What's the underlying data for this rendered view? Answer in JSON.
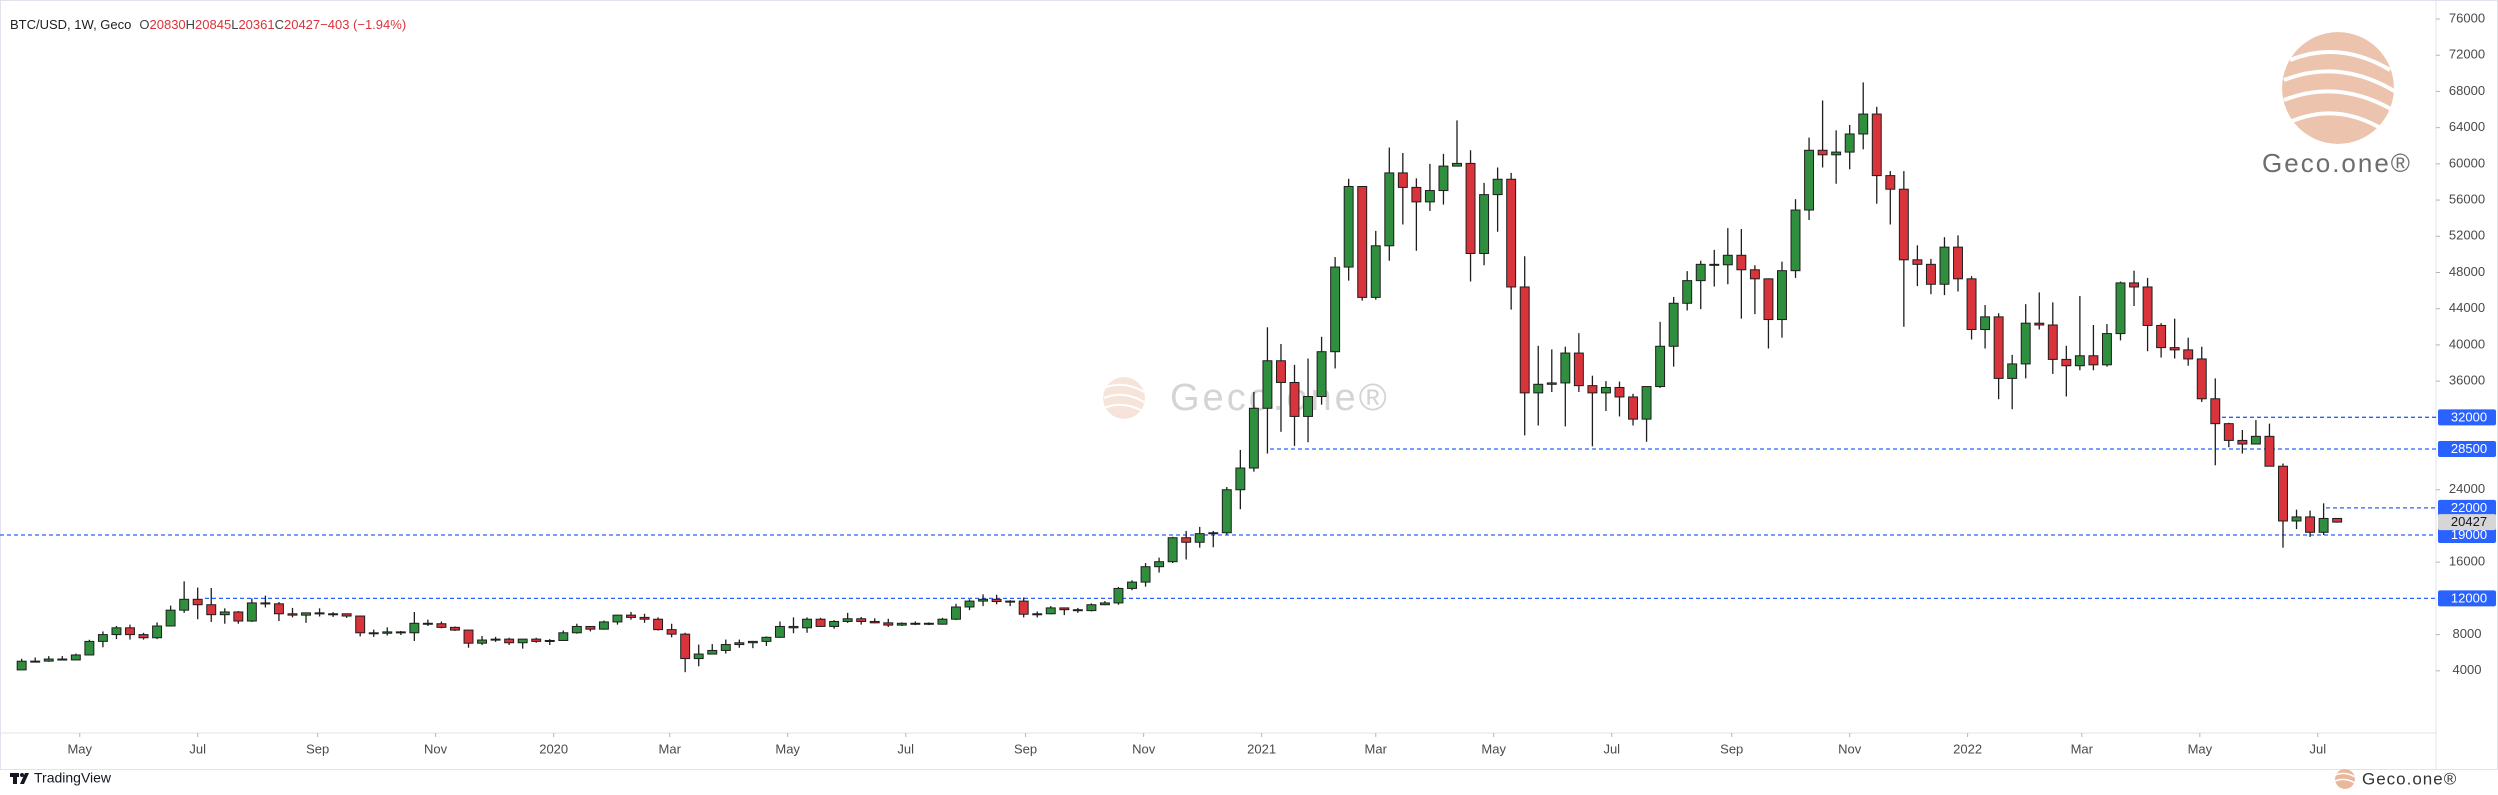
{
  "header": {
    "symbol": "BTC/USD, 1W, Geco",
    "ohlc_labels": [
      "O",
      "H",
      "L",
      "C"
    ],
    "change": "−403 (−1.94%)"
  },
  "watermark": "Geco.one®",
  "footer": {
    "platform": "TradingView"
  },
  "chart_data": {
    "type": "candlestick",
    "up_color": "#2f8f3e",
    "down_color": "#d9343b",
    "wick_color": "#1e1e1e",
    "open": [
      4100,
      5060,
      5070,
      5300,
      5200,
      5750,
      7250,
      8000,
      8750,
      8000,
      7650,
      8950,
      10700,
      11900,
      11300,
      10200,
      10500,
      9500,
      11500,
      11400,
      10300,
      10150,
      10400,
      10300,
      10300,
      10050,
      8200,
      8150,
      8300,
      8200,
      9250,
      9200,
      8800,
      8500,
      7050,
      7400,
      7500,
      7100,
      7500,
      7250,
      7350,
      8200,
      8900,
      8600,
      9400,
      10150,
      9900,
      9700,
      8550,
      8050,
      5350,
      5850,
      6250,
      6900,
      7100,
      7250,
      7700,
      8900,
      8750,
      9700,
      8900,
      9450,
      9750,
      9450,
      9300,
      9050,
      9250,
      9250,
      9150,
      9700,
      11050,
      11700,
      11900,
      11650,
      11700,
      10250,
      10300,
      10950,
      10750,
      10650,
      11300,
      11500,
      13100,
      13800,
      15500,
      16050,
      18700,
      18200,
      19150,
      19250,
      24000,
      26400,
      33000,
      38250,
      35850,
      32100,
      34300,
      39250,
      48600,
      57500,
      45250,
      50950,
      59000,
      57400,
      55800,
      57050,
      59750,
      60050,
      50100,
      56600,
      58300,
      46400,
      34700,
      35650,
      35800,
      39100,
      35500,
      34700,
      35300,
      34250,
      31800,
      35400,
      39850,
      44600,
      47100,
      48900,
      48850,
      49900,
      48300,
      47300,
      42800,
      48200,
      54900,
      61500,
      61000,
      61300,
      63300,
      65500,
      58700,
      57200,
      49400,
      48900,
      46700,
      50800,
      47300,
      41700,
      43100,
      36300,
      37900,
      42400,
      42200,
      38400,
      37700,
      38800,
      37800,
      41250,
      46850,
      46400,
      42150,
      39700,
      39450,
      38450,
      34050,
      31300,
      29450,
      29050,
      29900,
      26600,
      20550,
      21000,
      19300,
      20830
    ],
    "high": [
      5330,
      5470,
      5620,
      5630,
      5900,
      7430,
      8350,
      8950,
      9100,
      8200,
      9350,
      11200,
      13880,
      13200,
      13150,
      10900,
      10600,
      12000,
      12300,
      11600,
      10950,
      10450,
      10900,
      10480,
      10330,
      10100,
      8550,
      8800,
      8400,
      10500,
      9650,
      9450,
      8900,
      8500,
      7850,
      7750,
      7650,
      7500,
      7650,
      7500,
      8450,
      9200,
      8950,
      9550,
      10200,
      10500,
      10300,
      9900,
      9200,
      8200,
      6900,
      6950,
      7450,
      7450,
      7300,
      7800,
      9450,
      9900,
      9900,
      9850,
      9600,
      10400,
      9950,
      9800,
      9750,
      9350,
      9450,
      9350,
      9850,
      11400,
      11900,
      12450,
      12400,
      11800,
      12100,
      10550,
      11150,
      10950,
      10950,
      11450,
      11700,
      13250,
      14000,
      15900,
      16500,
      18800,
      19450,
      19900,
      19450,
      24300,
      28400,
      34800,
      41950,
      40100,
      37800,
      38500,
      40900,
      49700,
      58350,
      57500,
      52600,
      61800,
      61200,
      58400,
      60000,
      61100,
      64800,
      61500,
      57900,
      59600,
      59000,
      49800,
      39900,
      39500,
      39800,
      41300,
      36600,
      36000,
      35950,
      34600,
      35450,
      42550,
      45300,
      48150,
      49300,
      50500,
      52900,
      52800,
      48800,
      47350,
      49200,
      56100,
      62900,
      67000,
      63700,
      64300,
      69000,
      66300,
      59200,
      59200,
      51000,
      49500,
      51900,
      52100,
      47600,
      44400,
      43500,
      38900,
      44500,
      45800,
      44700,
      39900,
      45400,
      42200,
      42300,
      47000,
      48200,
      47400,
      42400,
      42900,
      40800,
      39800,
      36300,
      31400,
      30600,
      31700,
      31300,
      26900,
      21800,
      21700,
      22500,
      20845
    ],
    "low": [
      4090,
      4920,
      5000,
      5150,
      5180,
      5700,
      6600,
      7500,
      7450,
      7450,
      7500,
      8950,
      10400,
      9700,
      9400,
      9200,
      9200,
      9400,
      11000,
      9500,
      9900,
      9300,
      10000,
      9950,
      9850,
      7800,
      7750,
      7900,
      7950,
      7300,
      8950,
      8700,
      8400,
      6550,
      6850,
      7200,
      6850,
      6450,
      7100,
      6850,
      7300,
      8100,
      8350,
      8550,
      9100,
      9650,
      9300,
      8450,
      7700,
      3850,
      4500,
      5850,
      5900,
      6550,
      6500,
      6750,
      7650,
      8150,
      8200,
      8850,
      8650,
      9300,
      9100,
      9250,
      8850,
      8950,
      9050,
      9050,
      9100,
      9600,
      10700,
      11150,
      11350,
      11150,
      9900,
      9900,
      10250,
      10150,
      10400,
      10550,
      11250,
      11300,
      12900,
      13300,
      14850,
      15900,
      16300,
      17600,
      17650,
      19050,
      21850,
      26000,
      28000,
      30400,
      28850,
      29250,
      33400,
      37400,
      47100,
      44900,
      45000,
      49300,
      53300,
      50400,
      54800,
      55500,
      59750,
      47000,
      48800,
      52500,
      43900,
      30000,
      31100,
      34800,
      31000,
      34800,
      28800,
      32700,
      32100,
      31100,
      29300,
      35250,
      37600,
      43800,
      43950,
      46450,
      46700,
      42900,
      43400,
      39600,
      40800,
      47400,
      53800,
      59600,
      57800,
      59400,
      61600,
      55600,
      53300,
      42000,
      46500,
      45600,
      45500,
      45900,
      40600,
      39600,
      34000,
      32900,
      36300,
      41700,
      36800,
      34300,
      37200,
      37200,
      37600,
      40500,
      44300,
      39300,
      38600,
      38500,
      37700,
      33700,
      26700,
      28700,
      28000,
      29200,
      26600,
      17600,
      19650,
      18780,
      19000,
      20361
    ],
    "close": [
      5060,
      5070,
      5300,
      5200,
      5750,
      7250,
      8000,
      8750,
      8000,
      7650,
      8950,
      10700,
      11900,
      11300,
      10200,
      10500,
      9500,
      11500,
      11400,
      10300,
      10150,
      10400,
      10300,
      10300,
      10050,
      8200,
      8150,
      8300,
      8200,
      9250,
      9200,
      8800,
      8500,
      7050,
      7400,
      7500,
      7100,
      7500,
      7250,
      7350,
      8200,
      8900,
      8600,
      9400,
      10150,
      9900,
      9700,
      8550,
      8050,
      5350,
      5850,
      6250,
      6900,
      7100,
      7250,
      7700,
      8900,
      8750,
      9700,
      8900,
      9450,
      9750,
      9450,
      9300,
      9050,
      9250,
      9250,
      9150,
      9700,
      11050,
      11700,
      11900,
      11650,
      11700,
      10250,
      10300,
      10950,
      10750,
      10650,
      11300,
      11500,
      13100,
      13800,
      15500,
      16050,
      18700,
      18200,
      19150,
      19250,
      24000,
      26400,
      33000,
      38250,
      35850,
      32100,
      34300,
      39250,
      48600,
      57500,
      45250,
      50950,
      59000,
      57400,
      55800,
      57050,
      59750,
      60050,
      50100,
      56600,
      58300,
      46400,
      34700,
      35650,
      35800,
      39100,
      35500,
      34700,
      35300,
      34250,
      31800,
      35400,
      39850,
      44600,
      47100,
      48900,
      48850,
      49900,
      48300,
      47300,
      42800,
      48200,
      54900,
      61500,
      61000,
      61300,
      63300,
      65500,
      58700,
      57200,
      49400,
      48900,
      46700,
      50800,
      47300,
      41700,
      43100,
      36300,
      37900,
      42400,
      42200,
      38400,
      37700,
      38800,
      37800,
      41250,
      46850,
      46400,
      42150,
      39700,
      39450,
      38450,
      34050,
      31300,
      29450,
      29050,
      29900,
      26600,
      20550,
      21000,
      19300,
      20830,
      20427
    ],
    "xlim": [
      -1.6,
      178.3
    ],
    "xticks": [
      {
        "value": 4.29,
        "label": "May"
      },
      {
        "value": 13,
        "label": "Jul"
      },
      {
        "value": 21.86,
        "label": "Sep"
      },
      {
        "value": 30.57,
        "label": "Nov"
      },
      {
        "value": 39.29,
        "label": "2020"
      },
      {
        "value": 47.86,
        "label": "Mar"
      },
      {
        "value": 56.57,
        "label": "May"
      },
      {
        "value": 65.29,
        "label": "Jul"
      },
      {
        "value": 74.14,
        "label": "Sep"
      },
      {
        "value": 82.86,
        "label": "Nov"
      },
      {
        "value": 91.57,
        "label": "2021"
      },
      {
        "value": 100,
        "label": "Mar"
      },
      {
        "value": 108.71,
        "label": "May"
      },
      {
        "value": 117.43,
        "label": "Jul"
      },
      {
        "value": 126.29,
        "label": "Sep"
      },
      {
        "value": 135,
        "label": "Nov"
      },
      {
        "value": 143.71,
        "label": "2022"
      },
      {
        "value": 152.14,
        "label": "Mar"
      },
      {
        "value": 160.86,
        "label": "May"
      },
      {
        "value": 169.57,
        "label": "Jul"
      }
    ],
    "ylim": [
      -2870,
      78100
    ],
    "yticks": [
      4000,
      8000,
      16000,
      24000,
      36000,
      40000,
      44000,
      48000,
      52000,
      56000,
      60000,
      64000,
      68000,
      72000,
      76000
    ],
    "grid": false,
    "levels": [
      32000,
      28500,
      22000,
      19000,
      12000
    ],
    "level_color": "#2962ff"
  }
}
